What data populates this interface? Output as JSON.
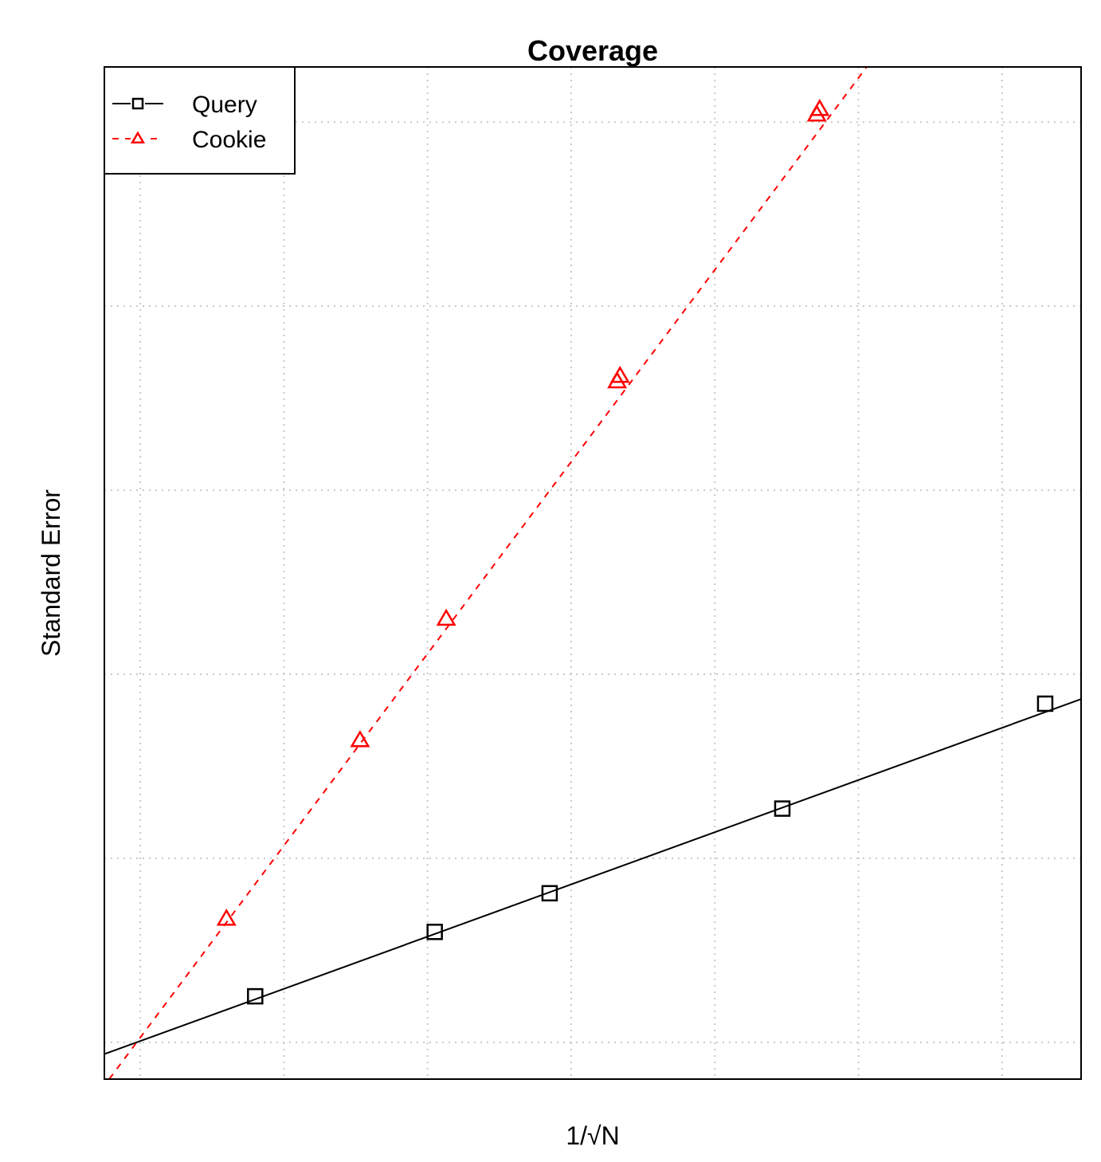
{
  "chart_data": {
    "type": "scatter",
    "title": "Coverage",
    "xlabel": "1/√N",
    "ylabel": "Standard Error",
    "xlim": [
      0.0,
      6.8
    ],
    "ylim": [
      0.0,
      5.5
    ],
    "x_gridlines": [
      0.25,
      1.25,
      2.25,
      3.25,
      4.25,
      5.25,
      6.25
    ],
    "y_gridlines": [
      0.2,
      1.2,
      2.2,
      3.2,
      4.2,
      5.2
    ],
    "grid": true,
    "tick_labels_shown": false,
    "legend": {
      "position": "top-left"
    },
    "series": [
      {
        "name": "Query",
        "color": "#000000",
        "marker": "square",
        "line": "solid",
        "x": [
          1.05,
          2.3,
          3.1,
          4.72,
          6.55
        ],
        "y": [
          0.45,
          0.8,
          1.01,
          1.47,
          2.04
        ],
        "fit": {
          "slope": 0.2837,
          "intercept": 0.136
        }
      },
      {
        "name": "Cookie",
        "color": "#ff0000",
        "marker": "triangle",
        "line": "dashed",
        "x": [
          0.85,
          1.78,
          2.38,
          3.57,
          3.59,
          4.96,
          4.98
        ],
        "y": [
          0.87,
          1.84,
          2.5,
          3.79,
          3.82,
          5.24,
          5.27
        ],
        "fit": {
          "slope": 1.0429,
          "intercept": -0.035
        }
      }
    ]
  }
}
